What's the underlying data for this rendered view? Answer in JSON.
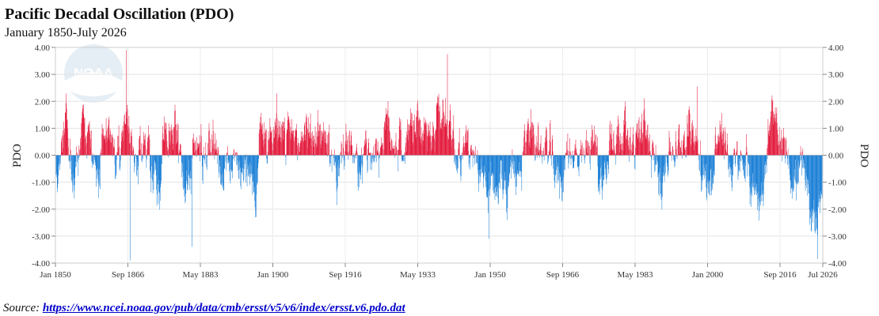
{
  "chart_data": {
    "type": "bar",
    "title": "Pacific Decadal Oscillation (PDO)",
    "subtitle": "January 1850-July 2026",
    "ylabel_left": "PDO",
    "ylabel_right": "PDO",
    "ylim": [
      -4,
      4
    ],
    "yticks": [
      -4,
      -3,
      -2,
      -1,
      0,
      1,
      2,
      3,
      4
    ],
    "ytick_labels": [
      "-4.00",
      "-3.00",
      "-2.00",
      "-1.00",
      "0.00",
      "1.00",
      "2.00",
      "3.00",
      "4.00"
    ],
    "x_range": [
      "Jan 1850",
      "Jul 2026"
    ],
    "xtick_labels": [
      "Jan 1850",
      "Sep 1866",
      "May 1883",
      "Jan 1900",
      "Sep 1916",
      "May 1933",
      "Jan 1950",
      "Sep 1966",
      "May 1983",
      "Jan 2000",
      "Sep 2016",
      "Jul 2026"
    ],
    "xtick_months_from_start": [
      0,
      200,
      400,
      600,
      800,
      1000,
      1200,
      1400,
      1600,
      1800,
      2000,
      2118
    ],
    "grid": true,
    "positive_color": "#e31a3c",
    "negative_color": "#1a7fd6",
    "series_profile": {
      "name": "",
      "unit": "month",
      "start": "1850-01",
      "end": "2026-07",
      "segments": [
        {
          "start": "1850-01",
          "end": "1851-05",
          "mean": -1.0
        },
        {
          "start": "1851-05",
          "end": "1853-06",
          "mean": 0.9
        },
        {
          "start": "1853-06",
          "end": "1855-10",
          "mean": -0.5
        },
        {
          "start": "1855-10",
          "end": "1858-05",
          "mean": 0.7
        },
        {
          "start": "1858-05",
          "end": "1860-05",
          "mean": -0.7
        },
        {
          "start": "1860-05",
          "end": "1863-03",
          "mean": 0.8
        },
        {
          "start": "1863-03",
          "end": "1865-02",
          "mean": -0.4
        },
        {
          "start": "1865-02",
          "end": "1868-02",
          "mean": 1.5
        },
        {
          "start": "1868-02",
          "end": "1871-10",
          "mean": 0.2
        },
        {
          "start": "1871-10",
          "end": "1874-08",
          "mean": -1.0
        },
        {
          "start": "1874-08",
          "end": "1878-05",
          "mean": 0.9
        },
        {
          "start": "1878-05",
          "end": "1881-04",
          "mean": -0.6
        },
        {
          "start": "1881-04",
          "end": "1885-01",
          "mean": 0.2
        },
        {
          "start": "1885-01",
          "end": "1887-08",
          "mean": 0.6
        },
        {
          "start": "1887-08",
          "end": "1890-09",
          "mean": -0.6
        },
        {
          "start": "1890-09",
          "end": "1894-01",
          "mean": 0.0
        },
        {
          "start": "1894-01",
          "end": "1896-11",
          "mean": -1.2
        },
        {
          "start": "1896-11",
          "end": "1898-10",
          "mean": 0.7
        },
        {
          "start": "1898-10",
          "end": "1902-11",
          "mean": 1.0
        },
        {
          "start": "1902-11",
          "end": "1906-03",
          "mean": 0.5
        },
        {
          "start": "1906-03",
          "end": "1909-07",
          "mean": 1.0
        },
        {
          "start": "1909-07",
          "end": "1913-02",
          "mean": 0.8
        },
        {
          "start": "1913-02",
          "end": "1915-12",
          "mean": -0.7
        },
        {
          "start": "1915-12",
          "end": "1918-05",
          "mean": 0.4
        },
        {
          "start": "1918-05",
          "end": "1921-05",
          "mean": -0.7
        },
        {
          "start": "1921-05",
          "end": "1924-08",
          "mean": 0.3
        },
        {
          "start": "1924-08",
          "end": "1928-10",
          "mean": 0.9
        },
        {
          "start": "1928-10",
          "end": "1931-01",
          "mean": 0.3
        },
        {
          "start": "1931-01",
          "end": "1934-01",
          "mean": 1.1
        },
        {
          "start": "1934-01",
          "end": "1936-05",
          "mean": 0.8
        },
        {
          "start": "1936-05",
          "end": "1941-10",
          "mean": 1.4
        },
        {
          "start": "1941-10",
          "end": "1945-09",
          "mean": 0.2
        },
        {
          "start": "1945-09",
          "end": "1950-06",
          "mean": -0.9
        },
        {
          "start": "1950-06",
          "end": "1955-05",
          "mean": -1.4
        },
        {
          "start": "1955-05",
          "end": "1957-05",
          "mean": -0.9
        },
        {
          "start": "1957-05",
          "end": "1961-04",
          "mean": 0.9
        },
        {
          "start": "1961-04",
          "end": "1964-02",
          "mean": 0.2
        },
        {
          "start": "1964-02",
          "end": "1967-08",
          "mean": -0.7
        },
        {
          "start": "1967-08",
          "end": "1969-10",
          "mean": 0.2
        },
        {
          "start": "1969-10",
          "end": "1972-01",
          "mean": -0.5
        },
        {
          "start": "1972-01",
          "end": "1974-10",
          "mean": 0.4
        },
        {
          "start": "1974-10",
          "end": "1977-05",
          "mean": -0.8
        },
        {
          "start": "1977-05",
          "end": "1983-04",
          "mean": 0.9
        },
        {
          "start": "1983-04",
          "end": "1987-02",
          "mean": 0.8
        },
        {
          "start": "1987-02",
          "end": "1990-06",
          "mean": -0.6
        },
        {
          "start": "1990-06",
          "end": "1993-10",
          "mean": 0.2
        },
        {
          "start": "1993-10",
          "end": "1998-06",
          "mean": 1.0
        },
        {
          "start": "1998-06",
          "end": "2001-09",
          "mean": -0.9
        },
        {
          "start": "2001-09",
          "end": "2004-10",
          "mean": 0.6
        },
        {
          "start": "2004-10",
          "end": "2009-02",
          "mean": -0.5
        },
        {
          "start": "2009-02",
          "end": "2013-09",
          "mean": -1.2
        },
        {
          "start": "2013-09",
          "end": "2016-03",
          "mean": 1.1
        },
        {
          "start": "2016-03",
          "end": "2018-12",
          "mean": 0.2
        },
        {
          "start": "2018-12",
          "end": "2022-01",
          "mean": -0.8
        },
        {
          "start": "2022-01",
          "end": "2026-07",
          "mean": -2.0
        }
      ],
      "notable_values": [
        {
          "date": "1866-05",
          "value": 3.9
        },
        {
          "date": "1867-03",
          "value": -3.9
        },
        {
          "date": "1881-06",
          "value": -3.4
        },
        {
          "date": "1940-03",
          "value": 3.75
        },
        {
          "date": "1949-09",
          "value": -3.1
        },
        {
          "date": "1997-08",
          "value": 2.55
        },
        {
          "date": "2025-05",
          "value": -3.85
        }
      ]
    }
  },
  "chart": {
    "title": "Pacific Decadal Oscillation (PDO)",
    "subtitle": "January 1850-July 2026"
  },
  "watermark": {
    "text": "NOAA"
  },
  "source": {
    "label": "Source:",
    "url_text": "https://www.ncei.noaa.gov/pub/data/cmb/ersst/v5/v6/index/ersst.v6.pdo.dat"
  }
}
